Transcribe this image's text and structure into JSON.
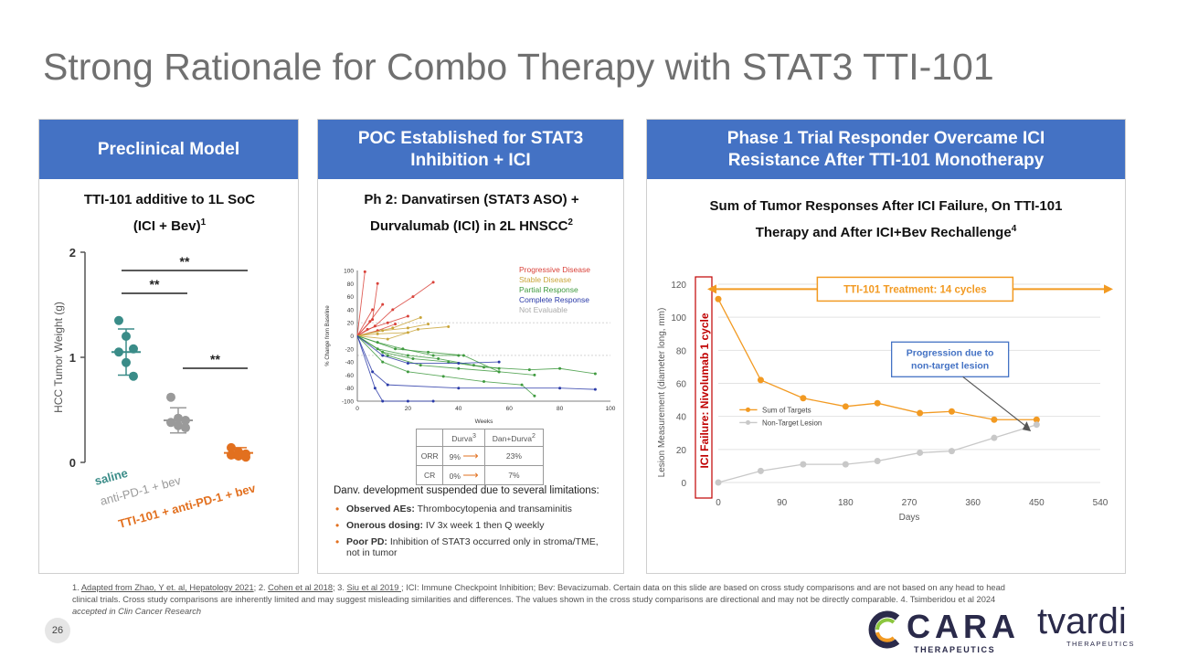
{
  "slide": {
    "title": "Strong Rationale for Combo Therapy with STAT3 TTI-101",
    "page_number": "26"
  },
  "panel1": {
    "header": "Preclinical Model",
    "subtitle_line1": "TTI-101 additive to 1L SoC",
    "subtitle_line2": "(ICI + Bev)",
    "subtitle_sup": "1"
  },
  "panel2": {
    "header_line1": "POC Established for STAT3",
    "header_line2": "Inhibition + ICI",
    "subtitle_line1": "Ph 2: Danvatirsen (STAT3 ASO) +",
    "subtitle_line2": "Durvalumab (ICI) in 2L HNSCC",
    "subtitle_sup": "2",
    "table": {
      "col1": "Durva",
      "col1_sup": "3",
      "col2": "Dan+Durva",
      "col2_sup": "2",
      "rows": [
        {
          "label": "ORR",
          "durva": "9%",
          "combo": "23%"
        },
        {
          "label": "CR",
          "durva": "0%",
          "combo": "7%"
        }
      ]
    },
    "limitations_title": "Danv. development suspended due to several limitations:",
    "limitations": [
      {
        "bold": "Observed AEs:",
        "text": " Thrombocytopenia and transaminitis"
      },
      {
        "bold": "Onerous dosing:",
        "text": " IV 3x week 1 then Q weekly"
      },
      {
        "bold": "Poor PD:",
        "text": " Inhibition of STAT3 occurred only in stroma/TME, not in tumor"
      }
    ]
  },
  "panel3": {
    "header_line1": "Phase 1 Trial Responder Overcame ICI",
    "header_line2": "Resistance After TTI-101 Monotherapy",
    "subtitle_line1": "Sum of Tumor Responses After ICI Failure, On TTI-101",
    "subtitle_line2": "Therapy and After ICI+Bev Rechallenge",
    "subtitle_sup": "4"
  },
  "chart_data": [
    {
      "type": "scatter",
      "title": "TTI-101 additive to 1L SoC (ICI + Bev)",
      "ylabel": "HCC Tumor Weight (g)",
      "ylim": [
        0,
        2
      ],
      "yticks": [
        "0",
        "1",
        "2"
      ],
      "categories": [
        "saline",
        "anti-PD-1 + bev",
        "TTI-101 + anti-PD-1 + bev"
      ],
      "colors": [
        "#3a8c88",
        "#9a9a9a",
        "#e2701f"
      ],
      "points": [
        [
          1.35,
          1.2,
          1.08,
          1.05,
          0.95,
          0.82
        ],
        [
          0.62,
          0.42,
          0.4,
          0.38,
          0.35,
          0.33
        ],
        [
          0.14,
          0.1,
          0.08,
          0.07,
          0.06,
          0.05
        ]
      ],
      "means": [
        1.05,
        0.4,
        0.09
      ],
      "sem": [
        0.22,
        0.12,
        0.05
      ],
      "significance": [
        {
          "from": 0,
          "to": 2,
          "label": "**"
        },
        {
          "from": 0,
          "to": 1,
          "label": "**"
        },
        {
          "from": 1,
          "to": 2,
          "label": "**"
        }
      ]
    },
    {
      "type": "line",
      "title": "Spider plot",
      "xlabel": "Weeks",
      "ylabel": "% Change from Baseline",
      "xlim": [
        0,
        100
      ],
      "ylim": [
        -100,
        100
      ],
      "xticks": [
        "0",
        "20",
        "40",
        "60",
        "80",
        "100"
      ],
      "yticks": [
        "100",
        "80",
        "60",
        "40",
        "20",
        "0",
        "-20",
        "-40",
        "-60",
        "-80",
        "-100"
      ],
      "legend": [
        {
          "name": "Progressive Disease",
          "color": "#d9423a"
        },
        {
          "name": "Stable Disease",
          "color": "#c9a53a"
        },
        {
          "name": "Partial Response",
          "color": "#3f9a3f"
        },
        {
          "name": "Complete Response",
          "color": "#2a3aa8"
        },
        {
          "name": "Not Evaluable",
          "color": "#aaaaaa"
        }
      ],
      "series": [
        {
          "group": "Progressive Disease",
          "x": [
            0,
            3
          ],
          "y": [
            0,
            98
          ]
        },
        {
          "group": "Progressive Disease",
          "x": [
            0,
            6,
            8
          ],
          "y": [
            0,
            25,
            80
          ]
        },
        {
          "group": "Progressive Disease",
          "x": [
            0,
            7,
            14,
            22,
            30
          ],
          "y": [
            0,
            15,
            40,
            60,
            82
          ]
        },
        {
          "group": "Progressive Disease",
          "x": [
            0,
            5,
            10
          ],
          "y": [
            0,
            22,
            48
          ]
        },
        {
          "group": "Progressive Disease",
          "x": [
            0,
            4,
            12,
            20
          ],
          "y": [
            0,
            10,
            20,
            30
          ]
        },
        {
          "group": "Progressive Disease",
          "x": [
            0,
            8,
            15
          ],
          "y": [
            0,
            8,
            18
          ]
        },
        {
          "group": "Progressive Disease",
          "x": [
            0,
            6
          ],
          "y": [
            0,
            40
          ]
        },
        {
          "group": "Stable Disease",
          "x": [
            0,
            10,
            20,
            28
          ],
          "y": [
            0,
            8,
            12,
            18
          ]
        },
        {
          "group": "Stable Disease",
          "x": [
            0,
            12,
            24,
            36
          ],
          "y": [
            0,
            -5,
            10,
            14
          ]
        },
        {
          "group": "Stable Disease",
          "x": [
            0,
            14,
            25
          ],
          "y": [
            0,
            12,
            28
          ]
        },
        {
          "group": "Stable Disease",
          "x": [
            0,
            8,
            20
          ],
          "y": [
            0,
            3,
            5
          ]
        },
        {
          "group": "Partial Response",
          "x": [
            0,
            8,
            20,
            32,
            46,
            56
          ],
          "y": [
            0,
            -20,
            -30,
            -35,
            -45,
            -50
          ]
        },
        {
          "group": "Partial Response",
          "x": [
            0,
            10,
            22,
            36,
            50,
            68,
            80,
            94
          ],
          "y": [
            0,
            -25,
            -35,
            -40,
            -48,
            -52,
            -50,
            -58
          ]
        },
        {
          "group": "Partial Response",
          "x": [
            0,
            12,
            25,
            40,
            56,
            70
          ],
          "y": [
            0,
            -30,
            -45,
            -50,
            -55,
            -60
          ]
        },
        {
          "group": "Partial Response",
          "x": [
            0,
            10,
            20,
            34,
            50,
            65,
            70
          ],
          "y": [
            0,
            -40,
            -55,
            -62,
            -70,
            -75,
            -92
          ]
        },
        {
          "group": "Partial Response",
          "x": [
            0,
            15,
            28,
            42,
            56
          ],
          "y": [
            0,
            -20,
            -25,
            -30,
            -55
          ]
        },
        {
          "group": "Partial Response",
          "x": [
            0,
            8,
            18,
            30,
            40
          ],
          "y": [
            0,
            -10,
            -20,
            -30,
            -30
          ]
        },
        {
          "group": "Complete Response",
          "x": [
            0,
            6,
            12,
            40,
            80,
            94
          ],
          "y": [
            0,
            -55,
            -75,
            -80,
            -80,
            -82
          ]
        },
        {
          "group": "Complete Response",
          "x": [
            0,
            7,
            10,
            20,
            30
          ],
          "y": [
            0,
            -80,
            -100,
            -100,
            -100
          ]
        },
        {
          "group": "Complete Response",
          "x": [
            0,
            10,
            20,
            40,
            56
          ],
          "y": [
            0,
            -30,
            -42,
            -42,
            -40
          ]
        }
      ]
    },
    {
      "type": "line",
      "title": "Sum of Tumor Responses After ICI Failure, On TTI-101 Therapy and After ICI+Bev Rechallenge",
      "xlabel": "Days",
      "ylabel": "Lesion Measurement (diameter long, mm)",
      "xlim": [
        0,
        540
      ],
      "ylim": [
        0,
        120
      ],
      "xticks": [
        "0",
        "90",
        "180",
        "270",
        "360",
        "450",
        "540"
      ],
      "yticks": [
        "0",
        "20",
        "40",
        "60",
        "80",
        "100",
        "120"
      ],
      "series": [
        {
          "name": "Sum of Targets",
          "color": "#f29a22",
          "x": [
            0,
            60,
            120,
            180,
            225,
            285,
            330,
            390,
            450
          ],
          "y": [
            111,
            62,
            51,
            46,
            48,
            42,
            43,
            38,
            38
          ]
        },
        {
          "name": "Non-Target Lesion",
          "color": "#c8c8c8",
          "x": [
            0,
            60,
            120,
            180,
            225,
            285,
            330,
            390,
            450
          ],
          "y": [
            0,
            7,
            11,
            11,
            13,
            18,
            19,
            27,
            35
          ]
        }
      ],
      "annotations": {
        "treatment_label": "TTI-101 Treatment: 14 cycles",
        "ici_failure_label": "ICI Failure: Nivolumab 1 cycle",
        "progression_label_line1": "Progression due to",
        "progression_label_line2": "non-target lesion"
      }
    }
  ],
  "footnote": {
    "ref1": "Adapted from Zhao, Y et. al, Hepatology 2021",
    "ref2": "Cohen et al 2018",
    "ref3": "Siu et al 2019 ",
    "text_a": "1. ",
    "text_b": "; 2. ",
    "text_c": "; 3. ",
    "text_d": "; ICI: Immune Checkpoint Inhibition; Bev: Bevacizumab. Certain data on this slide are based on cross study comparisons and are not based on any head to head clinical trials. Cross study comparisons are inherently limited and may suggest misleading similarities and differences. The values shown in the cross study comparisons are directional and may not be directly comparable. 4. Tsimberidou et al 2024 ",
    "text_italic": "accepted in Clin Cancer Research"
  },
  "logos": {
    "cara_word": "CARA",
    "cara_sub": "THERAPEUTICS",
    "tvardi_word": "tvardi",
    "tvardi_sub": "THERAPEUTICS",
    "cara_color": "#2a2a4a",
    "cara_accent_green": "#8cc63f",
    "cara_accent_orange": "#f29a22"
  }
}
